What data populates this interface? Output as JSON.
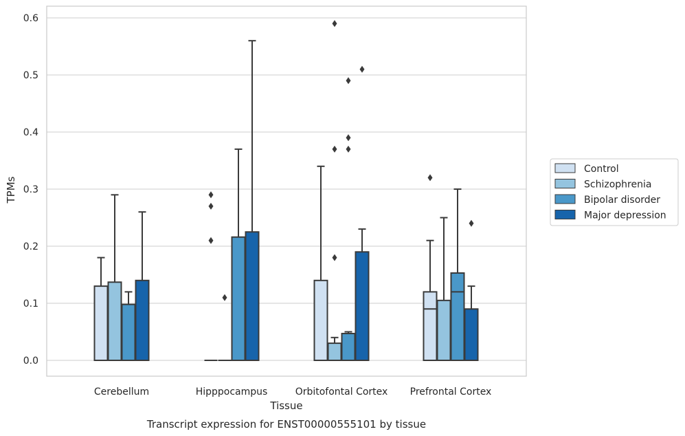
{
  "chart_data": {
    "type": "bar",
    "title": "",
    "caption": "Transcript expression for ENST00000555101 by tissue",
    "xlabel": "Tissue",
    "ylabel": "TPMs",
    "ylim": [
      -0.028,
      0.62
    ],
    "yticks": [
      "0.0",
      "0.1",
      "0.2",
      "0.3",
      "0.4",
      "0.5",
      "0.6"
    ],
    "grid": true,
    "legend_position": "right",
    "categories": [
      "Cerebellum",
      "Hipppocampus",
      "Orbitofontal Cortex",
      "Prefrontal Cortex"
    ],
    "series": [
      {
        "name": "Control",
        "color": "#d0e1f2",
        "boxes": [
          {
            "q1": 0.0,
            "median": 0.0,
            "q3": 0.13,
            "whisker_high": 0.18,
            "outliers": []
          },
          {
            "q1": 0.0,
            "median": 0.0,
            "q3": 0.0,
            "whisker_high": 0.0,
            "outliers": [
              0.21,
              0.27,
              0.29
            ]
          },
          {
            "q1": 0.0,
            "median": 0.0,
            "q3": 0.14,
            "whisker_high": 0.34,
            "outliers": []
          },
          {
            "q1": 0.0,
            "median": 0.09,
            "q3": 0.12,
            "whisker_high": 0.21,
            "outliers": [
              0.32
            ]
          }
        ]
      },
      {
        "name": "Schizophrenia",
        "color": "#94c4df",
        "boxes": [
          {
            "q1": 0.0,
            "median": 0.0,
            "q3": 0.137,
            "whisker_high": 0.29,
            "outliers": []
          },
          {
            "q1": 0.0,
            "median": 0.0,
            "q3": 0.0,
            "whisker_high": 0.0,
            "outliers": [
              0.11
            ]
          },
          {
            "q1": 0.0,
            "median": 0.0,
            "q3": 0.03,
            "whisker_high": 0.04,
            "outliers": [
              0.18,
              0.37,
              0.59
            ]
          },
          {
            "q1": 0.0,
            "median": 0.0,
            "q3": 0.105,
            "whisker_high": 0.25,
            "outliers": []
          }
        ]
      },
      {
        "name": "Bipolar disorder",
        "color": "#4a98c9",
        "boxes": [
          {
            "q1": 0.0,
            "median": 0.0,
            "q3": 0.098,
            "whisker_high": 0.12,
            "outliers": []
          },
          {
            "q1": 0.0,
            "median": 0.0,
            "q3": 0.216,
            "whisker_high": 0.37,
            "outliers": []
          },
          {
            "q1": 0.0,
            "median": 0.0,
            "q3": 0.047,
            "whisker_high": 0.05,
            "outliers": [
              0.37,
              0.39,
              0.49
            ]
          },
          {
            "q1": 0.0,
            "median": 0.12,
            "q3": 0.153,
            "whisker_high": 0.3,
            "outliers": []
          }
        ]
      },
      {
        "name": "Major depression",
        "color": "#1764ab",
        "boxes": [
          {
            "q1": 0.0,
            "median": 0.0,
            "q3": 0.14,
            "whisker_high": 0.26,
            "outliers": []
          },
          {
            "q1": 0.0,
            "median": 0.0,
            "q3": 0.225,
            "whisker_high": 0.56,
            "outliers": []
          },
          {
            "q1": 0.0,
            "median": 0.0,
            "q3": 0.19,
            "whisker_high": 0.23,
            "outliers": [
              0.51
            ]
          },
          {
            "q1": 0.0,
            "median": 0.0,
            "q3": 0.09,
            "whisker_high": 0.13,
            "outliers": [
              0.24
            ]
          }
        ]
      }
    ]
  }
}
